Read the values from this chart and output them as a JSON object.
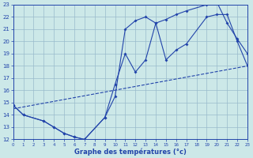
{
  "xlabel": "Graphe des températures (°c)",
  "bg_color": "#cce8e8",
  "grid_color": "#99bbcc",
  "line_color": "#2244aa",
  "xlim": [
    0,
    23
  ],
  "ylim": [
    12,
    23
  ],
  "xticks": [
    0,
    1,
    2,
    3,
    4,
    5,
    6,
    7,
    8,
    9,
    10,
    11,
    12,
    13,
    14,
    15,
    16,
    17,
    18,
    19,
    20,
    21,
    22,
    23
  ],
  "yticks": [
    12,
    13,
    14,
    15,
    16,
    17,
    18,
    19,
    20,
    21,
    22,
    23
  ],
  "series1_x": [
    0,
    1,
    3,
    4,
    5,
    6,
    7,
    9,
    10,
    11,
    12,
    13,
    14,
    15,
    16,
    17,
    19,
    20,
    21,
    22,
    23
  ],
  "series1_y": [
    14.8,
    14.0,
    13.5,
    13.0,
    12.5,
    12.2,
    12.0,
    13.8,
    15.5,
    21.0,
    21.7,
    22.0,
    21.5,
    21.8,
    22.2,
    22.5,
    23.0,
    23.2,
    21.5,
    20.2,
    19.0
  ],
  "series2_x": [
    0,
    1,
    3,
    4,
    5,
    6,
    7,
    9,
    10,
    11,
    12,
    13,
    14,
    15,
    16,
    17,
    19,
    20,
    21,
    22,
    23
  ],
  "series2_y": [
    14.8,
    14.0,
    13.5,
    13.0,
    12.5,
    12.2,
    12.0,
    13.8,
    16.5,
    19.0,
    17.5,
    18.5,
    21.5,
    18.5,
    19.3,
    19.8,
    22.0,
    22.2,
    22.2,
    20.0,
    18.0
  ],
  "series3_x": [
    0,
    23
  ],
  "series3_y": [
    14.5,
    18.0
  ]
}
